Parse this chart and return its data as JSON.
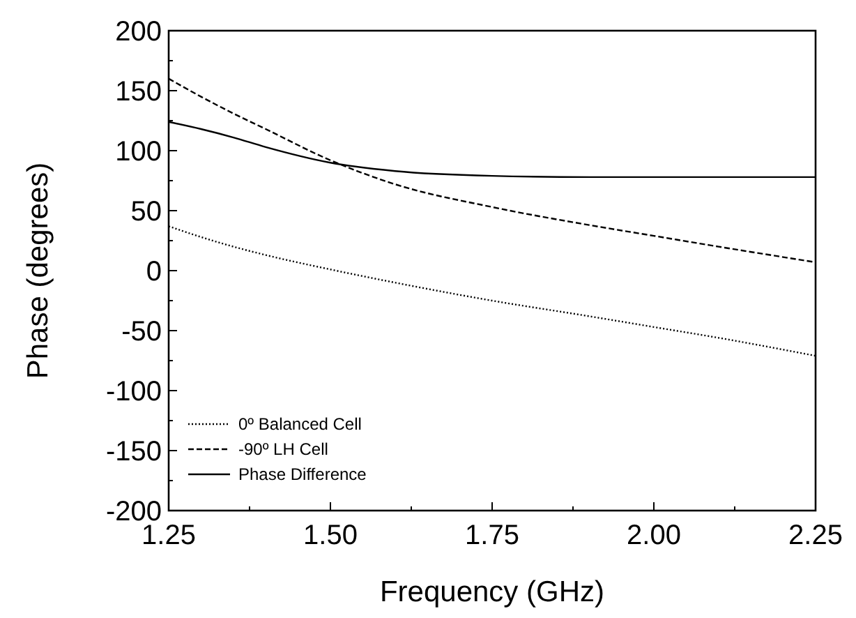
{
  "chart_data": {
    "type": "line",
    "xlabel": "Frequency (GHz)",
    "ylabel": "Phase (degrees)",
    "x": [
      1.25,
      1.3,
      1.35,
      1.4,
      1.5,
      1.6,
      1.75,
      1.9,
      2.0,
      2.1,
      2.25
    ],
    "series": [
      {
        "name": "0º Balanced Cell",
        "color": "#000000",
        "line_style": "dotted",
        "values": [
          37,
          28,
          20,
          13,
          1,
          -10,
          -25,
          -38,
          -47,
          -56,
          -71
        ]
      },
      {
        "name": "-90º LH Cell",
        "color": "#000000",
        "line_style": "dashed",
        "values": [
          160,
          145,
          131,
          118,
          92,
          72,
          53,
          38,
          29,
          20,
          7
        ]
      },
      {
        "name": "Phase Difference",
        "color": "#000000",
        "line_style": "solid",
        "values": [
          124,
          118,
          111,
          103,
          90,
          83,
          79,
          78,
          78,
          78,
          78
        ]
      }
    ],
    "xlim": [
      1.25,
      2.25
    ],
    "xticks": [
      1.25,
      {
        "value": 1.375,
        "label": null
      },
      {
        "value": 1.5,
        "label": "1.50"
      },
      {
        "value": 1.625,
        "label": null
      },
      1.75,
      {
        "value": 1.875,
        "label": null
      },
      {
        "value": 2,
        "label": "2.00"
      },
      {
        "value": 2.125,
        "label": null
      },
      2.25
    ],
    "ylim": [
      -200,
      200
    ],
    "yticks": [
      -200,
      {
        "value": -175,
        "label": null
      },
      -150,
      {
        "value": -125,
        "label": null
      },
      -100,
      {
        "value": -75,
        "label": null
      },
      -50,
      {
        "value": -25,
        "label": null
      },
      0,
      {
        "value": 25,
        "label": null
      },
      50,
      {
        "value": 75,
        "label": null
      },
      100,
      {
        "value": 125,
        "label": null
      },
      150,
      {
        "value": 175,
        "label": null
      },
      200
    ],
    "legend": "bottom left",
    "grid": false
  }
}
